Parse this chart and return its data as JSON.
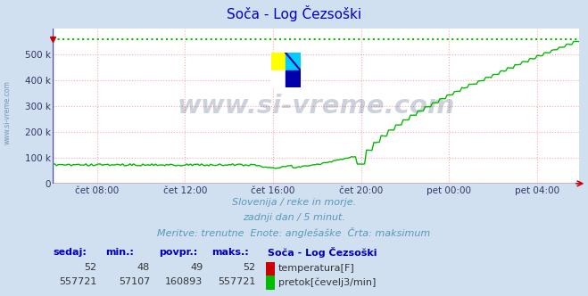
{
  "title": "Soča - Log Čezsoški",
  "title_color": "#0000cc",
  "bg_color": "#d0e0f0",
  "plot_bg_color": "#ffffff",
  "grid_color": "#ffaaaa",
  "x_tick_labels": [
    "čet 08:00",
    "čet 12:00",
    "čet 16:00",
    "čet 20:00",
    "pet 00:00",
    "pet 04:00"
  ],
  "ylim": [
    0,
    600000
  ],
  "yticks": [
    0,
    100000,
    200000,
    300000,
    400000,
    500000
  ],
  "ytick_labels": [
    "0",
    "100 k",
    "200 k",
    "300 k",
    "400 k",
    "500 k"
  ],
  "flow_color": "#00bb00",
  "temp_color": "#cc0000",
  "max_value": 557721,
  "watermark_text": "www.si-vreme.com",
  "watermark_color": "#1a3560",
  "subtitle1": "Slovenija / reke in morje.",
  "subtitle2": "zadnji dan / 5 minut.",
  "subtitle3": "Meritve: trenutne  Enote: anglešaške  Črta: maksimum",
  "legend_title": "Soča - Log Čezsoški",
  "legend_temp_label": "temperatura[F]",
  "legend_flow_label": "pretok[čevelj3/min]",
  "table_headers": [
    "sedaj:",
    "min.:",
    "povpr.:",
    "maks.:"
  ],
  "temp_sedaj": 52,
  "temp_min": 48,
  "temp_povpr": 49,
  "temp_maks": 52,
  "flow_sedaj": 557721,
  "flow_min": 57107,
  "flow_povpr": 160893,
  "flow_maks": 557721,
  "n_points": 288,
  "logo_colors": [
    "#ffff00",
    "#00ccff",
    "#ffffff",
    "#0000aa"
  ],
  "left_watermark": "www.si-vreme.com",
  "subtitle_color": "#5599bb",
  "tick_color": "#333366",
  "header_color": "#0000bb"
}
